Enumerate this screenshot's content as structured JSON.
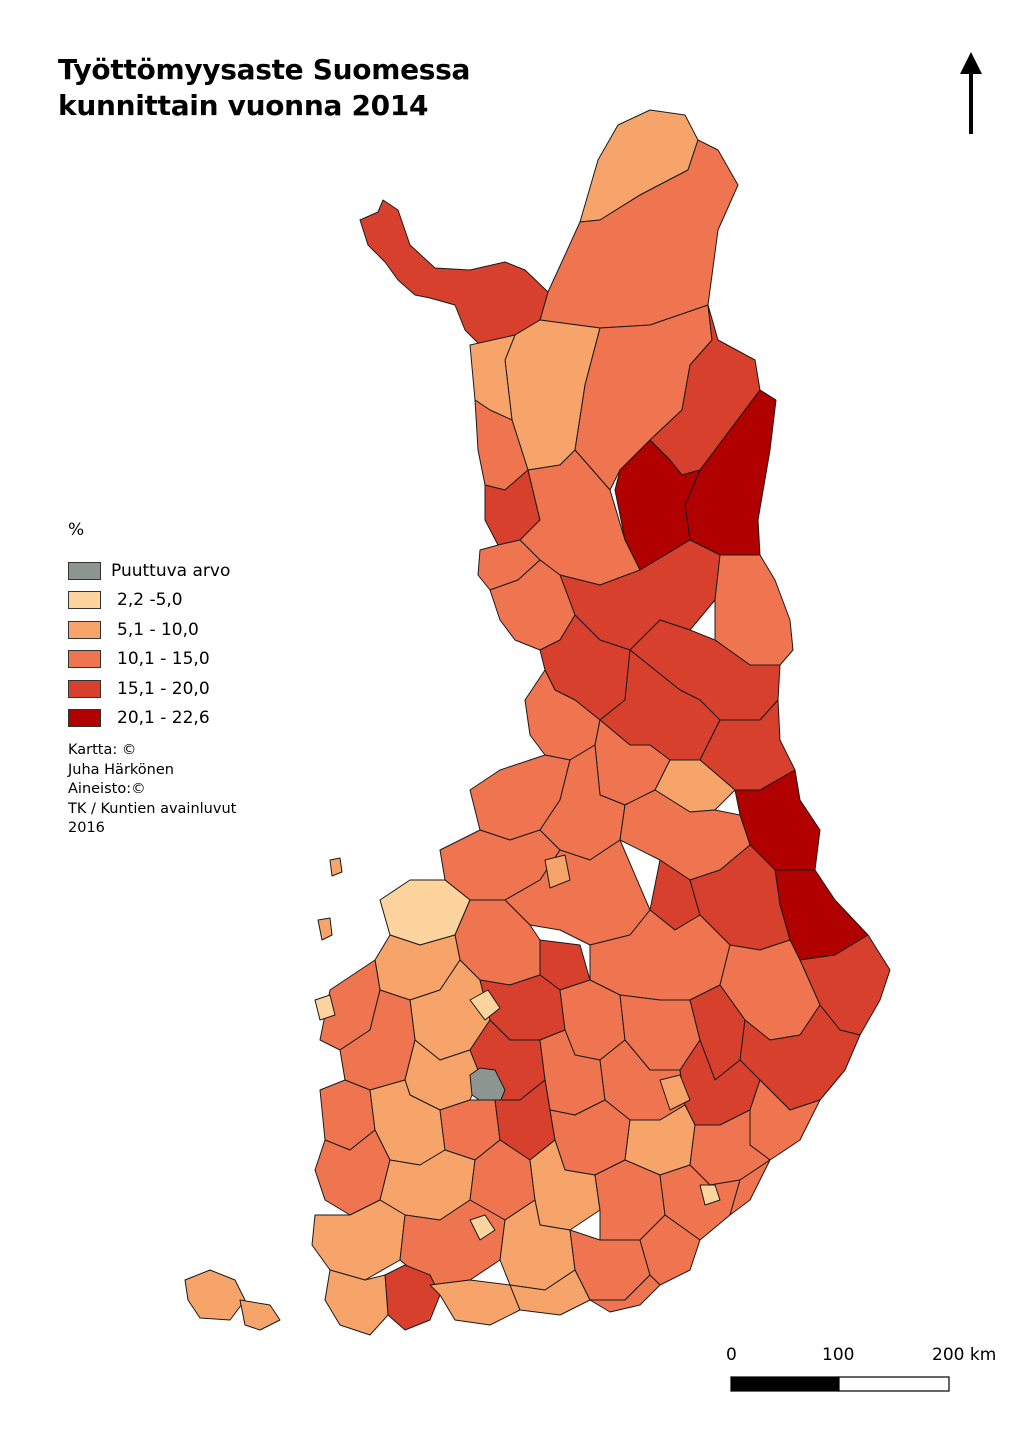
{
  "title": {
    "line1": "Työttömyysaste Suomessa",
    "line2": "kunnittain vuonna 2014"
  },
  "north_arrow": {
    "icon": "north-arrow-icon"
  },
  "legend": {
    "unit": "%",
    "items": [
      {
        "label": "Puuttuva arvo",
        "color": "#8c9590"
      },
      {
        "label": "2,2 -5,0",
        "color": "#fdd49e"
      },
      {
        "label": "5,1 - 10,0",
        "color": "#f6a46a"
      },
      {
        "label": "10,1 - 15,0",
        "color": "#ee7550"
      },
      {
        "label": "15,1 - 20,0",
        "color": "#d8402e"
      },
      {
        "label": "20,1 - 22,6",
        "color": "#b00000"
      }
    ]
  },
  "credits": {
    "line1": "Kartta: ©",
    "line2": "Juha Härkönen",
    "line3": "Aineisto:©",
    "line4": "TK / Kuntien avainluvut",
    "line5": "2016"
  },
  "scale_bar": {
    "labels": [
      "0",
      "100",
      "200 km"
    ]
  }
}
